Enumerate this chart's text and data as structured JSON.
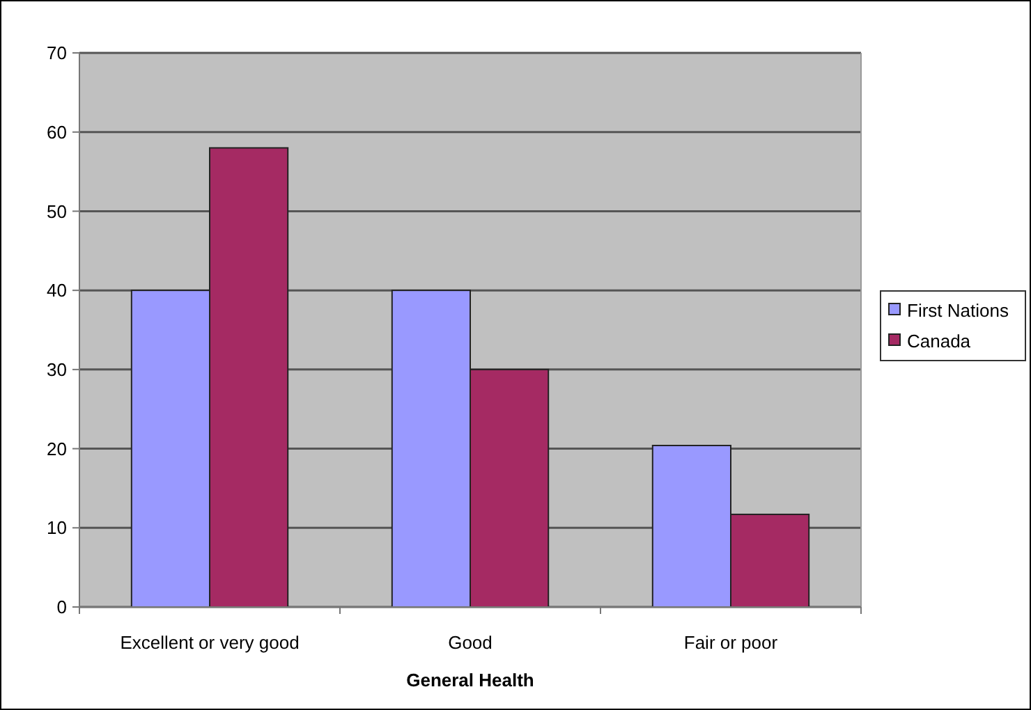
{
  "chart_data": {
    "type": "bar",
    "xlabel": "General Health",
    "categories": [
      "Excellent or very good",
      "Good",
      "Fair or poor"
    ],
    "series": [
      {
        "name": "First Nations",
        "color": "#9999ff",
        "values": [
          40,
          40,
          20.4
        ]
      },
      {
        "name": "Canada",
        "color": "#a52a63",
        "values": [
          58,
          30,
          11.7
        ]
      }
    ],
    "ylim": [
      0,
      70
    ],
    "yticks": [
      0,
      10,
      20,
      30,
      40,
      50,
      60,
      70
    ],
    "grid": "y",
    "legend": "right"
  }
}
